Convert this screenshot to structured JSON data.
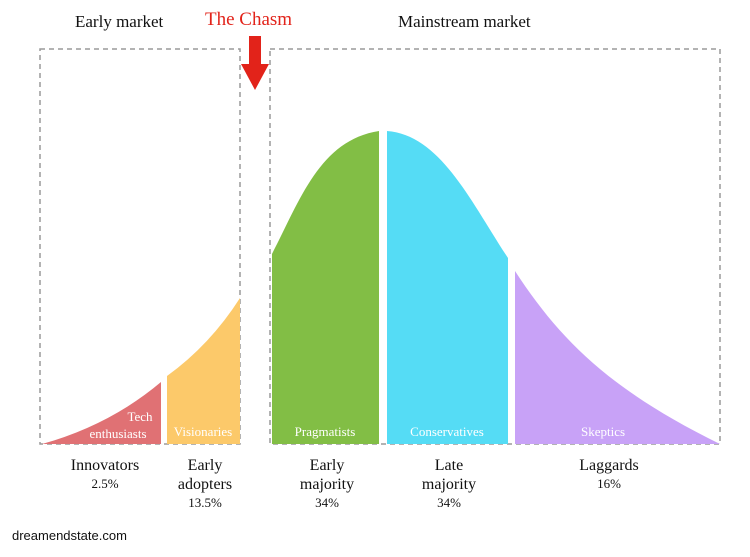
{
  "headers": {
    "early_market": "Early market",
    "chasm": "The Chasm",
    "mainstream_market": "Mainstream market"
  },
  "segments": [
    {
      "label_line1": "Tech",
      "label_line2": "enthusiasts",
      "color": "#e07174"
    },
    {
      "label": "Visionaries",
      "color": "#fcc96a"
    },
    {
      "label": "Pragmatists",
      "color": "#82be45"
    },
    {
      "label": "Conservatives",
      "color": "#55dcf5"
    },
    {
      "label": "Skeptics",
      "color": "#c8a2f7"
    }
  ],
  "categories": [
    {
      "name": "Innovators",
      "percent": "2.5%"
    },
    {
      "name_line1": "Early",
      "name_line2": "adopters",
      "percent": "13.5%"
    },
    {
      "name_line1": "Early",
      "name_line2": "majority",
      "percent": "34%"
    },
    {
      "name_line1": "Late",
      "name_line2": "majority",
      "percent": "34%"
    },
    {
      "name": "Laggards",
      "percent": "16%"
    }
  ],
  "arrow_color": "#e2231a",
  "source": "dreamendstate.com"
}
